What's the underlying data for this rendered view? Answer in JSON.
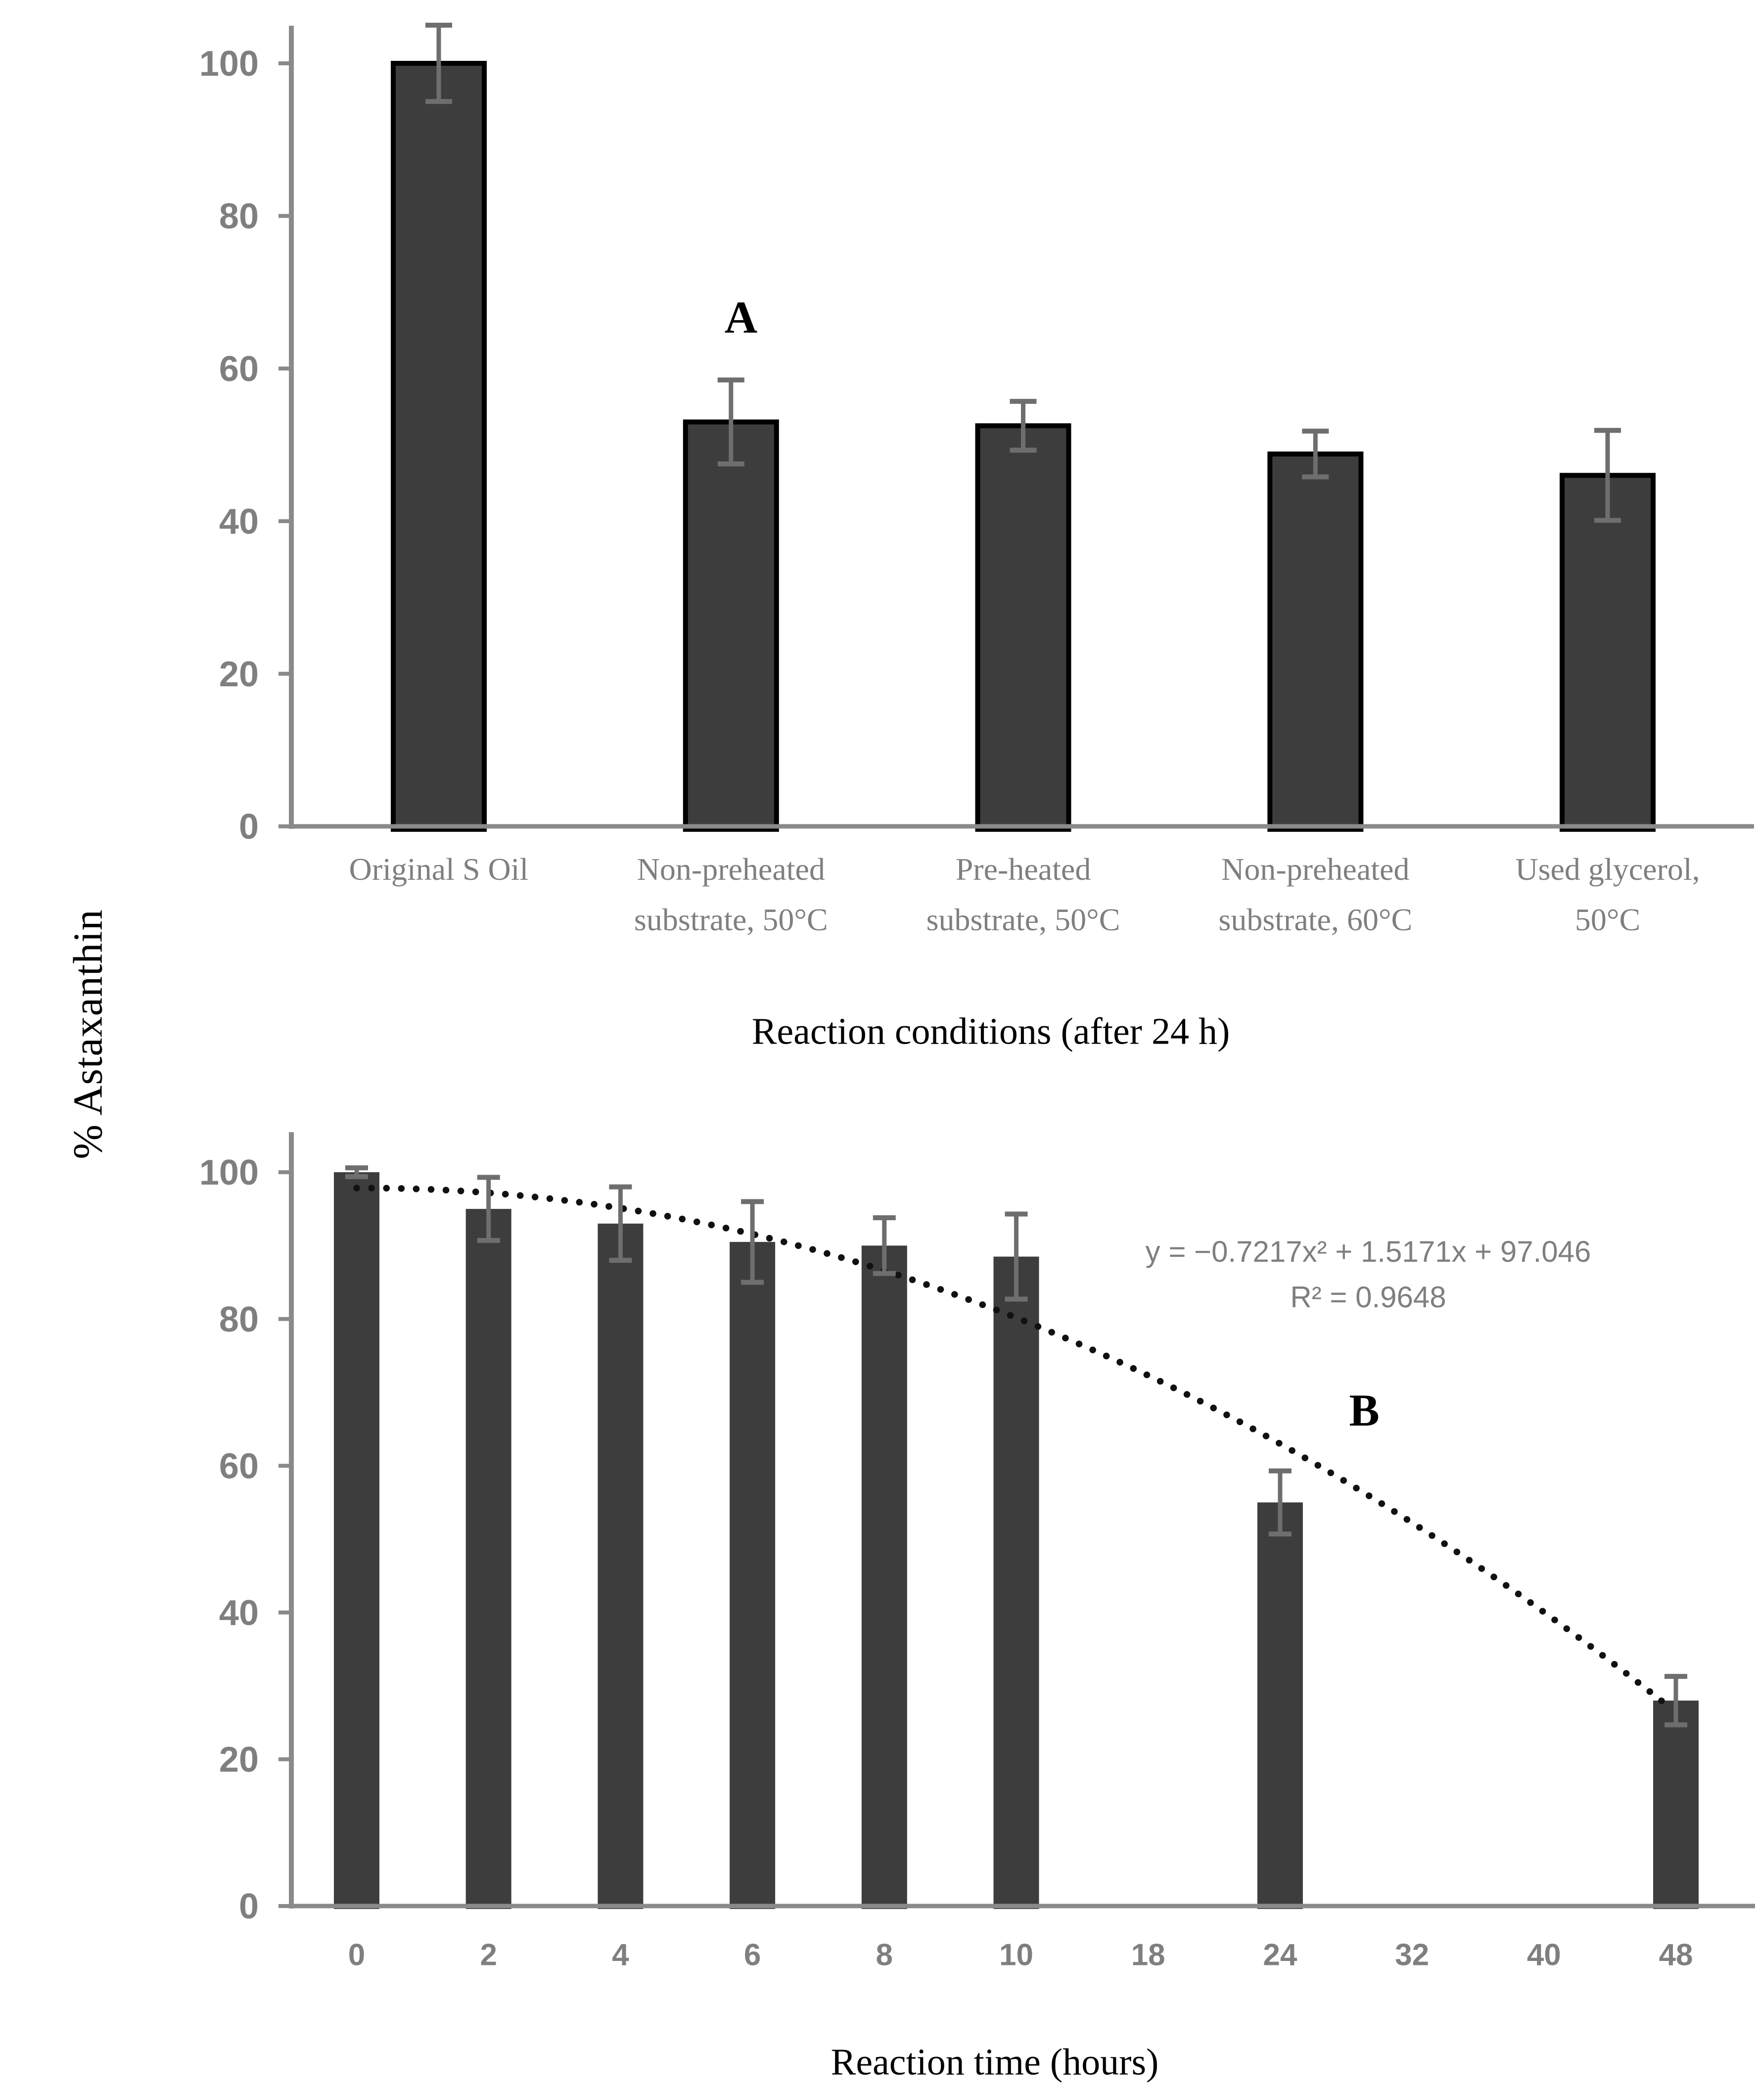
{
  "figure": {
    "y_axis_shared_label": "% Astaxanthin",
    "background": "#ffffff"
  },
  "colors": {
    "bar_fill": "#3d3d3d",
    "bar_outline": "#000000",
    "axis_line": "#8a8a8a",
    "tick_label": "#7f7f7f",
    "category_label": "#7f7f7f",
    "error_bar": "#6e6e6e",
    "equation_text": "#7f7f7f",
    "trendline": "#111111",
    "title_text": "#000000"
  },
  "chart_data": [
    {
      "panel": "A",
      "type": "bar",
      "title": "",
      "xlabel": "Reaction conditions (after 24 h)",
      "ylabel": "% Astaxanthin",
      "ylim": [
        0,
        105
      ],
      "yticks": [
        0,
        20,
        40,
        60,
        80,
        100
      ],
      "grid": false,
      "legend": null,
      "categories": [
        "Original S Oil",
        "Non-preheated\nsubstrate, 50°C",
        "Pre-heated\nsubstrate, 50°C",
        "Non-preheated\nsubstrate, 60°C",
        "Used glycerol,\n50°C"
      ],
      "values": [
        100,
        53,
        52.5,
        48.8,
        46
      ],
      "errors": [
        5,
        5.5,
        3.2,
        3,
        5.9
      ]
    },
    {
      "panel": "B",
      "type": "bar",
      "title": "",
      "xlabel": "Reaction time (hours)",
      "ylabel": "% Astaxanthin",
      "ylim": [
        0,
        105
      ],
      "yticks": [
        0,
        20,
        40,
        60,
        80,
        100
      ],
      "grid": false,
      "legend": null,
      "categories": [
        "0",
        "2",
        "4",
        "6",
        "8",
        "10",
        "18",
        "24",
        "32",
        "40",
        "48"
      ],
      "values": [
        100,
        95,
        93,
        90.5,
        90,
        88.5,
        null,
        55,
        null,
        null,
        28
      ],
      "errors": [
        0.6,
        4.3,
        5,
        5.5,
        3.8,
        5.8,
        null,
        4.3,
        null,
        null,
        3.3
      ],
      "trendline": {
        "type": "polynomial_order2",
        "equation": "y = −0.7217x² + 1.5171x + 97.046",
        "r_squared_label": "R² = 0.9648",
        "a": -0.7217,
        "b": 1.5171,
        "c": 97.046,
        "x_is_category_index": true,
        "style": "dotted"
      }
    }
  ]
}
